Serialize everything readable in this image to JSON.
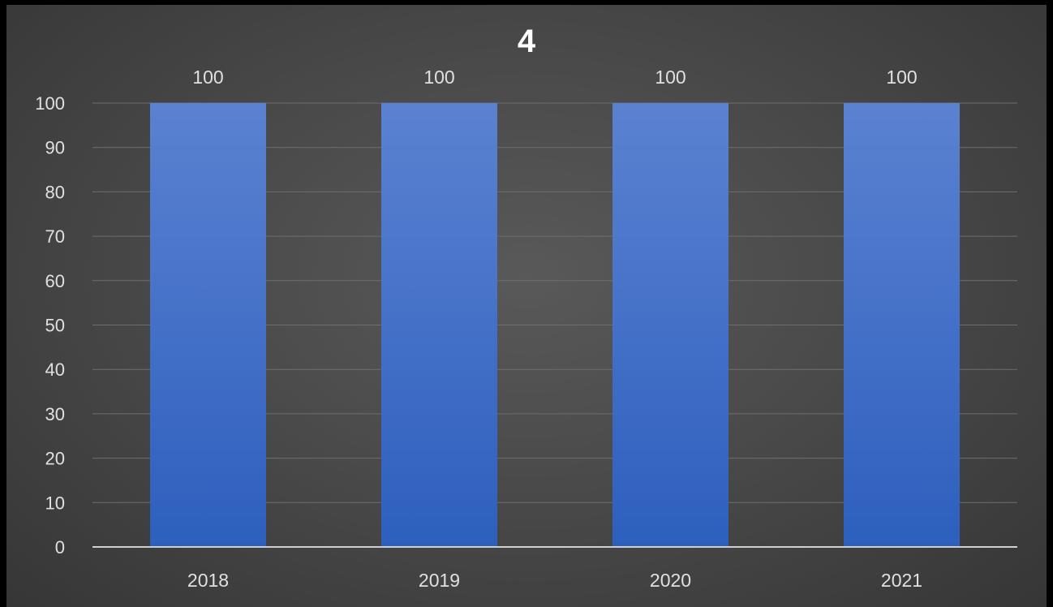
{
  "chart_data": {
    "type": "bar",
    "title": "4",
    "categories": [
      "2018",
      "2019",
      "2020",
      "2021"
    ],
    "values": [
      100,
      100,
      100,
      100
    ],
    "data_labels": [
      "100",
      "100",
      "100",
      "100"
    ],
    "xlabel": "",
    "ylabel": "",
    "ylim": [
      0,
      100
    ],
    "yticks": [
      0,
      10,
      20,
      30,
      40,
      50,
      60,
      70,
      80,
      90,
      100
    ],
    "ytick_labels": [
      "0",
      "10",
      "20",
      "30",
      "40",
      "50",
      "60",
      "70",
      "80",
      "90",
      "100"
    ],
    "grid": true,
    "legend": "none",
    "colors": {
      "bar_top": "#5b82d1",
      "bar_bottom": "#2d5fbe",
      "background": "#4a4a4a",
      "gridline": "#6e6e6e",
      "axis": "#cfcfcf",
      "text": "#e0e0e0",
      "title": "#ffffff"
    }
  }
}
